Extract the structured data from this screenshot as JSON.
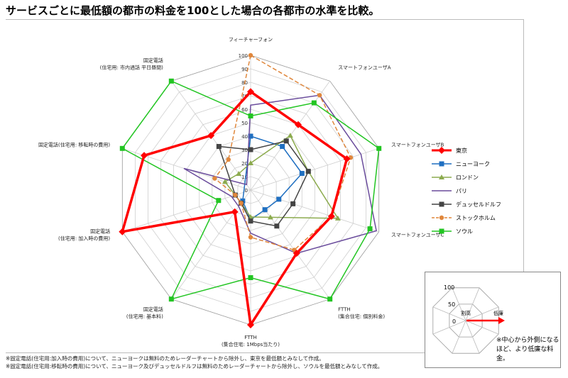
{
  "page": {
    "title": "サービスごとに最低額の都市の料金を100とした場合の各都市の水準を比較。",
    "notes": [
      "※固定電話(住宅用:加入時の費用)について、ニューヨークは無料のためレーダーチャートから除外し、東京を最低額とみなして作成。",
      "※固定電話(住宅用:移転時の費用)について、ニューヨーク及びデュッセルドルフは無料のためレーダーチャートから除外し、ソウルを最低額とみなして作成。"
    ]
  },
  "chart_data": {
    "type": "radar",
    "axes": [
      "フィーチャーフォン",
      "スマートフォンユーザA",
      "スマートフォンユーザB",
      "スマートフォンユーザC",
      "FTTH (集合住宅: 個別料金)",
      "FTTH (集合住宅: 1Mbps当たり)",
      "固定電話 (住宅用: 基本料)",
      "固定電話 (住宅用: 加入時の費用)",
      "固定電話 (住宅用: 移転時の費用)",
      "固定電話 (住宅用: 市内通話 平日昼間)"
    ],
    "axis_label_lines": [
      [
        "フィーチャーフォン"
      ],
      [
        "スマートフォンユーザA"
      ],
      [
        "スマートフォンユーザB"
      ],
      [
        "スマートフォンユーザC"
      ],
      [
        "FTTH",
        "(集合住宅: 個別料金)"
      ],
      [
        "FTTH",
        "(集合住宅: 1Mbps当たり)"
      ],
      [
        "固定電話",
        "(住宅用: 基本料)"
      ],
      [
        "固定電話",
        "(住宅用: 加入時の費用)"
      ],
      [
        "固定電話(住宅用: 移転時の費用)"
      ],
      [
        "固定電話",
        "(住宅用: 市内通話 平日昼間)"
      ]
    ],
    "r_ticks": [
      0,
      10,
      20,
      30,
      40,
      50,
      60,
      70,
      80,
      90,
      100
    ],
    "rlim": [
      0,
      100
    ],
    "legend_position": "right",
    "series": [
      {
        "name": "東京",
        "color": "#ff0000",
        "marker": "diamond",
        "dash": "",
        "width": 3.5,
        "values": [
          73,
          60,
          75,
          63,
          58,
          100,
          20,
          100,
          83,
          50
        ],
        "missing": []
      },
      {
        "name": "ニューヨーク",
        "color": "#1f6fc1",
        "marker": "square",
        "dash": "",
        "width": 1.5,
        "values": [
          40,
          40,
          40,
          22,
          18,
          22,
          10,
          null,
          null,
          null
        ],
        "missing": [
          7,
          8,
          9
        ]
      },
      {
        "name": "ロンドン",
        "color": "#8cab4e",
        "marker": "triangle",
        "dash": "",
        "width": 1.5,
        "values": [
          20,
          50,
          45,
          68,
          25,
          20,
          12,
          12,
          20,
          15
        ],
        "missing": []
      },
      {
        "name": "パリ",
        "color": "#6a4c9c",
        "marker": "none",
        "dash": "",
        "width": 1.5,
        "values": [
          63,
          87,
          86,
          98,
          58,
          32,
          15,
          15,
          52,
          5
        ],
        "missing": []
      },
      {
        "name": "デュッセルドルフ",
        "color": "#444444",
        "marker": "square",
        "dash": "",
        "width": 1.5,
        "values": [
          30,
          45,
          45,
          33,
          33,
          23,
          12,
          12,
          null,
          40
        ],
        "missing": [
          8
        ]
      },
      {
        "name": "ストックホルム",
        "color": "#e0873c",
        "marker": "circle",
        "dash": "6 3",
        "width": 1.5,
        "values": [
          100,
          87,
          78,
          63,
          55,
          35,
          12,
          12,
          28,
          28
        ],
        "missing": []
      },
      {
        "name": "ソウル",
        "color": "#22c522",
        "marker": "square",
        "dash": "",
        "width": 1.5,
        "values": [
          55,
          80,
          100,
          93,
          100,
          65,
          100,
          25,
          100,
          100
        ],
        "missing": []
      }
    ]
  },
  "explainer": {
    "ticks": [
      "100",
      "50",
      "0"
    ],
    "expensive_label": "割高",
    "cheap_label": "低廉",
    "note": "※中心から外側になるほど、より低廉な料金。"
  }
}
